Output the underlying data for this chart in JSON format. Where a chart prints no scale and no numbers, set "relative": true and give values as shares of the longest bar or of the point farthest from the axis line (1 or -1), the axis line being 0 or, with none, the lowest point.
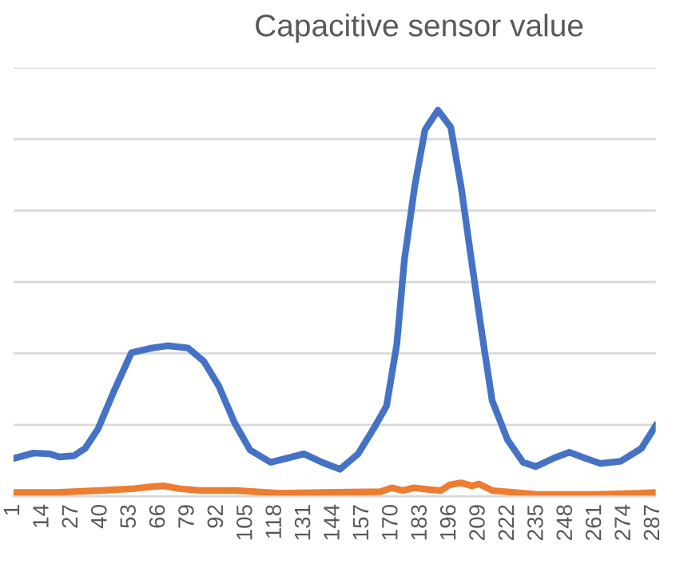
{
  "chart_data": {
    "type": "line",
    "title": "Capacitive sensor value",
    "relative": true,
    "grid": "y",
    "legend": false,
    "marker": "none",
    "line_style": "solid",
    "xlim": [
      1,
      288
    ],
    "xticks": [
      1,
      14,
      27,
      40,
      53,
      66,
      79,
      92,
      105,
      118,
      131,
      144,
      157,
      170,
      183,
      196,
      209,
      222,
      235,
      248,
      261,
      274,
      287
    ],
    "series": [
      {
        "color": "#4472c4",
        "x": [
          1,
          10,
          17,
          21.5,
          28,
          33,
          38.8,
          45.7,
          53.7,
          62.9,
          69.8,
          79,
          86,
          92.8,
          99.8,
          106.7,
          115.9,
          122.8,
          130.8,
          138.9,
          146.9,
          155,
          161.9,
          167.7,
          172.3,
          175.7,
          180.3,
          184.9,
          190.7,
          196.4,
          201,
          205.6,
          210.3,
          214.9,
          221.8,
          228.7,
          234.4,
          242.5,
          249.4,
          256.3,
          263.2,
          272.4,
          281.6,
          288
        ],
        "values": [
          0.098,
          0.112,
          0.11,
          0.102,
          0.105,
          0.124,
          0.175,
          0.27,
          0.372,
          0.384,
          0.39,
          0.384,
          0.35,
          0.285,
          0.19,
          0.12,
          0.088,
          0.098,
          0.11,
          0.088,
          0.07,
          0.11,
          0.175,
          0.234,
          0.394,
          0.613,
          0.803,
          0.949,
          1,
          0.956,
          0.803,
          0.613,
          0.423,
          0.248,
          0.146,
          0.088,
          0.077,
          0.099,
          0.114,
          0.099,
          0.085,
          0.091,
          0.124,
          0.183
        ]
      },
      {
        "color": "#ed7d31",
        "x": [
          1,
          20,
          40,
          55,
          63,
          68,
          75,
          85,
          100,
          120,
          140,
          165,
          170,
          175,
          180,
          186,
          192,
          196,
          201,
          206,
          209,
          215,
          225,
          235,
          260,
          280,
          288
        ],
        "values": [
          0.01,
          0.01,
          0.015,
          0.02,
          0.025,
          0.027,
          0.02,
          0.015,
          0.015,
          0.008,
          0.01,
          0.012,
          0.022,
          0.015,
          0.022,
          0.018,
          0.015,
          0.03,
          0.035,
          0.027,
          0.032,
          0.015,
          0.01,
          0.005,
          0.005,
          0.008,
          0.01
        ]
      }
    ]
  }
}
